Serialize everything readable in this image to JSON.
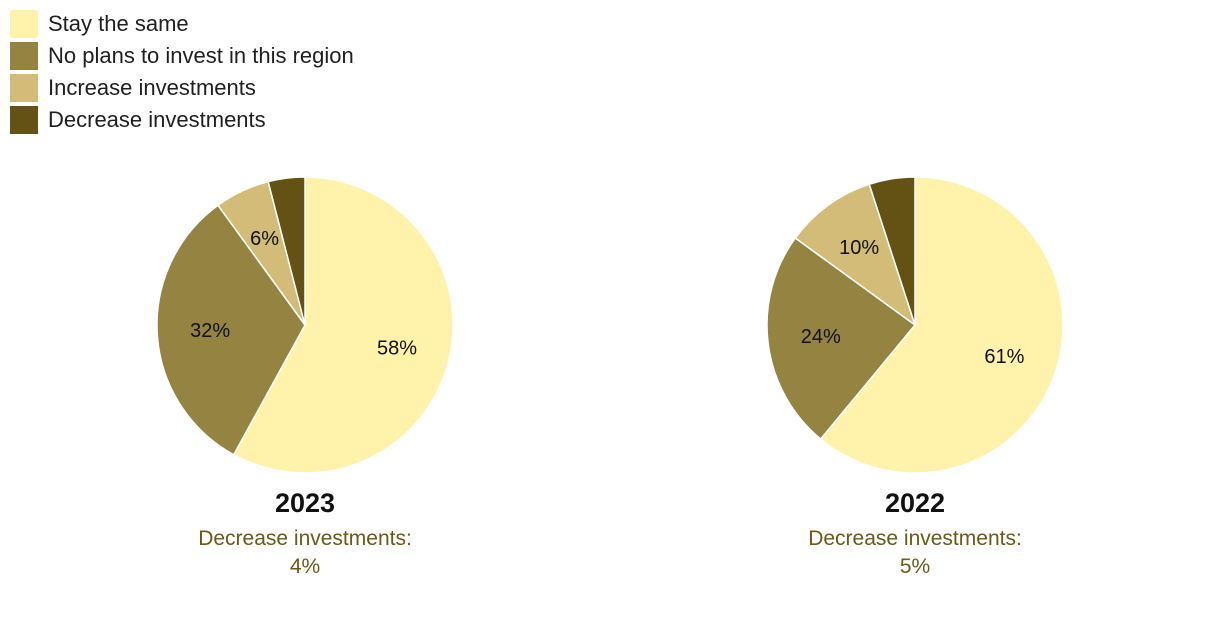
{
  "legend": [
    {
      "label": "Stay the same",
      "color": "#fff2aa"
    },
    {
      "label": "No plans to invest in this region",
      "color": "#958342"
    },
    {
      "label": "Increase investments",
      "color": "#d2bc78"
    },
    {
      "label": "Decrease investments",
      "color": "#635214"
    }
  ],
  "chart_data": [
    {
      "type": "pie",
      "title": "2023",
      "labels": [
        "Stay the same",
        "No plans to invest in this region",
        "Increase investments",
        "Decrease investments"
      ],
      "values": [
        58,
        32,
        6,
        4
      ],
      "data_labels": [
        "58%",
        "32%",
        "6%",
        ""
      ],
      "colors": [
        "#fff2aa",
        "#958342",
        "#d2bc78",
        "#635214"
      ],
      "note_line1": "Decrease investments:",
      "note_line2": "4%"
    },
    {
      "type": "pie",
      "title": "2022",
      "labels": [
        "Stay the same",
        "No plans to invest in this region",
        "Increase investments",
        "Decrease investments"
      ],
      "values": [
        61,
        24,
        10,
        5
      ],
      "data_labels": [
        "61%",
        "24%",
        "10%",
        ""
      ],
      "colors": [
        "#fff2aa",
        "#958342",
        "#d2bc78",
        "#635214"
      ],
      "note_line1": "Decrease investments:",
      "note_line2": "5%"
    }
  ]
}
